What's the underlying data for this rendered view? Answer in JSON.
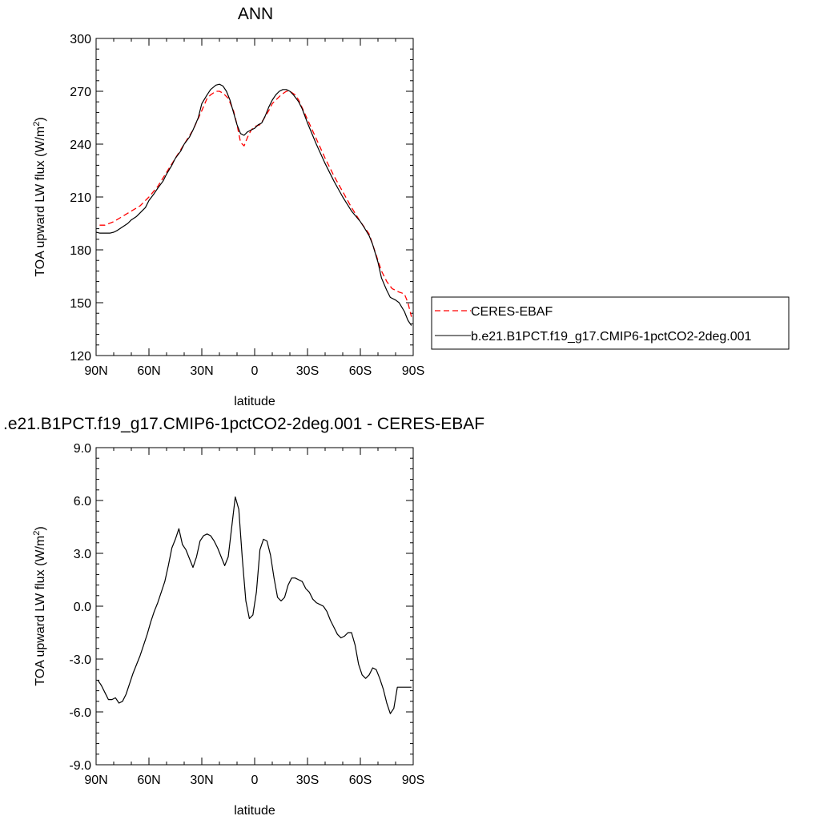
{
  "chart_data": [
    {
      "type": "line",
      "title": "ANN",
      "xlabel": "latitude",
      "ylabel": "TOA upward LW flux (W/m²)",
      "ylabel_parts": {
        "main": "TOA upward LW flux (W/m",
        "sup": "2",
        "close": ")"
      },
      "xlim": [
        -90,
        90
      ],
      "ylim": [
        120,
        300
      ],
      "x_ticks": [
        -90,
        -60,
        -30,
        0,
        30,
        60,
        90
      ],
      "x_tick_labels": [
        "90N",
        "60N",
        "30N",
        "0",
        "30S",
        "60S",
        "90S"
      ],
      "y_ticks": [
        120,
        150,
        180,
        210,
        240,
        270,
        300
      ],
      "y_tick_labels": [
        "120",
        "150",
        "180",
        "210",
        "240",
        "270",
        "300"
      ],
      "grid": false,
      "legend_position": "right",
      "series": [
        {
          "name": "CERES-EBAF",
          "color": "#ff0000",
          "dash": "dashed",
          "x": [
            -88,
            -85,
            -80,
            -75,
            -70,
            -65,
            -60,
            -55,
            -50,
            -45,
            -40,
            -35,
            -30,
            -27,
            -25,
            -22,
            -20,
            -18,
            -15,
            -12,
            -10,
            -8,
            -6,
            -4,
            -2,
            0,
            3,
            5,
            8,
            10,
            13,
            15,
            18,
            20,
            23,
            25,
            30,
            35,
            40,
            45,
            50,
            55,
            60,
            65,
            68,
            70,
            72,
            75,
            78,
            80,
            82,
            85,
            87,
            89
          ],
          "values": [
            194,
            194,
            196,
            199,
            202,
            205,
            210,
            216,
            224,
            232,
            240,
            248,
            259,
            266,
            268,
            270,
            270,
            269,
            266,
            259,
            251,
            241,
            239,
            244,
            248,
            250,
            251,
            254,
            259,
            263,
            266,
            268,
            270,
            270,
            268,
            265,
            254,
            243,
            232,
            222,
            213,
            204,
            196,
            189,
            180,
            174,
            168,
            162,
            158,
            157,
            156,
            155,
            150,
            142
          ]
        },
        {
          "name": "b.e21.B1PCT.f19_g17.CMIP6-1pctCO2-2deg.001",
          "color": "#000000",
          "dash": "solid",
          "x": [
            -90,
            -88,
            -85,
            -82,
            -80,
            -78,
            -75,
            -72,
            -70,
            -67,
            -65,
            -62,
            -60,
            -57,
            -55,
            -52,
            -50,
            -47,
            -45,
            -42,
            -40,
            -37,
            -35,
            -32,
            -30,
            -27,
            -25,
            -22,
            -20,
            -18,
            -16,
            -14,
            -12,
            -10,
            -8,
            -6,
            -4,
            -2,
            0,
            2,
            4,
            6,
            8,
            10,
            12,
            14,
            16,
            18,
            20,
            22,
            25,
            27,
            30,
            35,
            40,
            45,
            50,
            55,
            60,
            62,
            65,
            67,
            70,
            72,
            75,
            77,
            80,
            82,
            85,
            87,
            89
          ],
          "values": [
            190,
            189.5,
            189.5,
            189.5,
            190,
            191,
            193,
            195,
            197,
            199,
            201,
            204,
            208,
            212,
            215,
            219,
            223,
            228,
            232,
            236,
            240,
            244,
            248,
            255,
            263,
            268,
            271,
            273.5,
            274,
            273,
            270,
            265,
            258,
            251,
            246,
            245,
            247,
            248,
            249,
            251,
            252,
            256,
            261,
            265,
            268,
            270,
            271,
            271,
            270,
            268,
            264,
            260,
            252,
            240,
            229,
            219,
            210,
            202,
            196,
            193,
            188,
            183,
            173,
            164,
            157,
            153,
            151.5,
            150,
            145,
            140,
            137
          ]
        }
      ]
    },
    {
      "type": "line",
      "title": ".e21.B1PCT.f19_g17.CMIP6-1pctCO2-2deg.001 - CERES-EBAF",
      "xlabel": "latitude",
      "ylabel": "TOA upward LW flux (W/m²)",
      "ylabel_parts": {
        "main": "TOA upward LW flux (W/m",
        "sup": "2",
        "close": ")"
      },
      "xlim": [
        -90,
        90
      ],
      "ylim": [
        -9,
        9
      ],
      "x_ticks": [
        -90,
        -60,
        -30,
        0,
        30,
        60,
        90
      ],
      "x_tick_labels": [
        "90N",
        "60N",
        "30N",
        "0",
        "30S",
        "60S",
        "90S"
      ],
      "y_ticks": [
        -9,
        -6,
        -3,
        0,
        3,
        6,
        9
      ],
      "y_tick_labels": [
        "-9.0",
        "-6.0",
        "-3.0",
        "0.0",
        "3.0",
        "6.0",
        "9.0"
      ],
      "grid": false,
      "series": [
        {
          "color": "#000000",
          "dash": "solid",
          "x": [
            -89,
            -87,
            -85,
            -83,
            -81,
            -79,
            -77,
            -75,
            -73,
            -71,
            -69,
            -67,
            -65,
            -63,
            -61,
            -59,
            -57,
            -55,
            -53,
            -51,
            -49,
            -47,
            -45,
            -43,
            -41,
            -39,
            -37,
            -35,
            -33,
            -31,
            -29,
            -27,
            -25,
            -23,
            -21,
            -19,
            -17,
            -15,
            -13,
            -11,
            -9,
            -7,
            -5,
            -3,
            -1,
            1,
            3,
            5,
            7,
            9,
            11,
            13,
            15,
            17,
            19,
            21,
            23,
            25,
            27,
            29,
            31,
            33,
            35,
            37,
            39,
            41,
            43,
            45,
            47,
            49,
            51,
            53,
            55,
            57,
            59,
            61,
            63,
            65,
            67,
            69,
            71,
            73,
            75,
            77,
            79,
            81,
            83,
            85,
            87,
            89
          ],
          "values": [
            -4.2,
            -4.5,
            -4.9,
            -5.3,
            -5.3,
            -5.2,
            -5.5,
            -5.4,
            -5.0,
            -4.4,
            -3.8,
            -3.3,
            -2.8,
            -2.2,
            -1.6,
            -0.9,
            -0.3,
            0.2,
            0.8,
            1.4,
            2.3,
            3.3,
            3.8,
            4.4,
            3.5,
            3.2,
            2.7,
            2.2,
            2.8,
            3.7,
            4.0,
            4.1,
            4.0,
            3.7,
            3.3,
            2.8,
            2.3,
            2.8,
            4.5,
            6.2,
            5.5,
            2.7,
            0.3,
            -0.7,
            -0.5,
            0.8,
            3.2,
            3.8,
            3.7,
            2.9,
            1.6,
            0.5,
            0.3,
            0.5,
            1.2,
            1.6,
            1.6,
            1.5,
            1.4,
            1.0,
            0.8,
            0.4,
            0.2,
            0.1,
            0.0,
            -0.3,
            -0.8,
            -1.2,
            -1.6,
            -1.8,
            -1.7,
            -1.5,
            -1.5,
            -2.2,
            -3.3,
            -3.9,
            -4.1,
            -3.9,
            -3.5,
            -3.6,
            -4.1,
            -4.7,
            -5.5,
            -6.1,
            -5.8,
            -4.6,
            -4.6,
            -4.6,
            -4.6,
            -4.6
          ]
        }
      ]
    }
  ]
}
